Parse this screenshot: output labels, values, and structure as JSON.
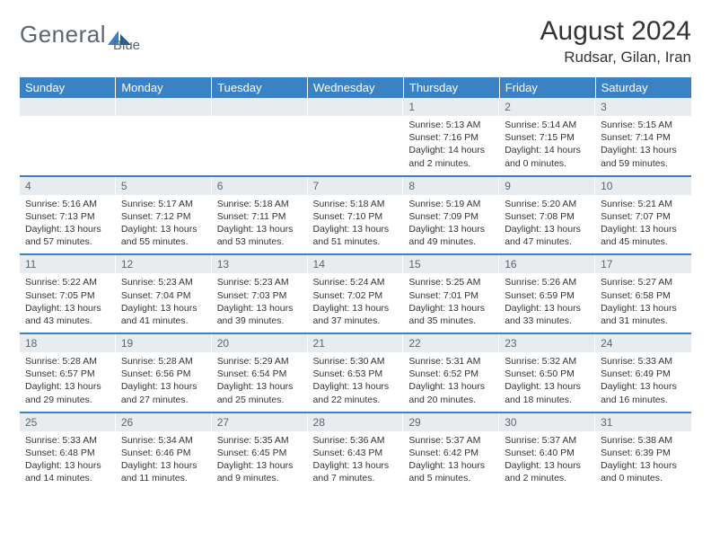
{
  "brand": {
    "name1": "General",
    "name2": "Blue"
  },
  "title": "August 2024",
  "location": "Rudsar, Gilan, Iran",
  "colors": {
    "accent": "#3b82c4",
    "header_text": "#ffffff",
    "daynum_bg": "#e9ecef",
    "text": "#333333",
    "logo_gray": "#5a6570"
  },
  "weekdays": [
    "Sunday",
    "Monday",
    "Tuesday",
    "Wednesday",
    "Thursday",
    "Friday",
    "Saturday"
  ],
  "weeks": [
    [
      {
        "n": "",
        "sr": "",
        "ss": "",
        "dl": ""
      },
      {
        "n": "",
        "sr": "",
        "ss": "",
        "dl": ""
      },
      {
        "n": "",
        "sr": "",
        "ss": "",
        "dl": ""
      },
      {
        "n": "",
        "sr": "",
        "ss": "",
        "dl": ""
      },
      {
        "n": "1",
        "sr": "Sunrise: 5:13 AM",
        "ss": "Sunset: 7:16 PM",
        "dl": "Daylight: 14 hours and 2 minutes."
      },
      {
        "n": "2",
        "sr": "Sunrise: 5:14 AM",
        "ss": "Sunset: 7:15 PM",
        "dl": "Daylight: 14 hours and 0 minutes."
      },
      {
        "n": "3",
        "sr": "Sunrise: 5:15 AM",
        "ss": "Sunset: 7:14 PM",
        "dl": "Daylight: 13 hours and 59 minutes."
      }
    ],
    [
      {
        "n": "4",
        "sr": "Sunrise: 5:16 AM",
        "ss": "Sunset: 7:13 PM",
        "dl": "Daylight: 13 hours and 57 minutes."
      },
      {
        "n": "5",
        "sr": "Sunrise: 5:17 AM",
        "ss": "Sunset: 7:12 PM",
        "dl": "Daylight: 13 hours and 55 minutes."
      },
      {
        "n": "6",
        "sr": "Sunrise: 5:18 AM",
        "ss": "Sunset: 7:11 PM",
        "dl": "Daylight: 13 hours and 53 minutes."
      },
      {
        "n": "7",
        "sr": "Sunrise: 5:18 AM",
        "ss": "Sunset: 7:10 PM",
        "dl": "Daylight: 13 hours and 51 minutes."
      },
      {
        "n": "8",
        "sr": "Sunrise: 5:19 AM",
        "ss": "Sunset: 7:09 PM",
        "dl": "Daylight: 13 hours and 49 minutes."
      },
      {
        "n": "9",
        "sr": "Sunrise: 5:20 AM",
        "ss": "Sunset: 7:08 PM",
        "dl": "Daylight: 13 hours and 47 minutes."
      },
      {
        "n": "10",
        "sr": "Sunrise: 5:21 AM",
        "ss": "Sunset: 7:07 PM",
        "dl": "Daylight: 13 hours and 45 minutes."
      }
    ],
    [
      {
        "n": "11",
        "sr": "Sunrise: 5:22 AM",
        "ss": "Sunset: 7:05 PM",
        "dl": "Daylight: 13 hours and 43 minutes."
      },
      {
        "n": "12",
        "sr": "Sunrise: 5:23 AM",
        "ss": "Sunset: 7:04 PM",
        "dl": "Daylight: 13 hours and 41 minutes."
      },
      {
        "n": "13",
        "sr": "Sunrise: 5:23 AM",
        "ss": "Sunset: 7:03 PM",
        "dl": "Daylight: 13 hours and 39 minutes."
      },
      {
        "n": "14",
        "sr": "Sunrise: 5:24 AM",
        "ss": "Sunset: 7:02 PM",
        "dl": "Daylight: 13 hours and 37 minutes."
      },
      {
        "n": "15",
        "sr": "Sunrise: 5:25 AM",
        "ss": "Sunset: 7:01 PM",
        "dl": "Daylight: 13 hours and 35 minutes."
      },
      {
        "n": "16",
        "sr": "Sunrise: 5:26 AM",
        "ss": "Sunset: 6:59 PM",
        "dl": "Daylight: 13 hours and 33 minutes."
      },
      {
        "n": "17",
        "sr": "Sunrise: 5:27 AM",
        "ss": "Sunset: 6:58 PM",
        "dl": "Daylight: 13 hours and 31 minutes."
      }
    ],
    [
      {
        "n": "18",
        "sr": "Sunrise: 5:28 AM",
        "ss": "Sunset: 6:57 PM",
        "dl": "Daylight: 13 hours and 29 minutes."
      },
      {
        "n": "19",
        "sr": "Sunrise: 5:28 AM",
        "ss": "Sunset: 6:56 PM",
        "dl": "Daylight: 13 hours and 27 minutes."
      },
      {
        "n": "20",
        "sr": "Sunrise: 5:29 AM",
        "ss": "Sunset: 6:54 PM",
        "dl": "Daylight: 13 hours and 25 minutes."
      },
      {
        "n": "21",
        "sr": "Sunrise: 5:30 AM",
        "ss": "Sunset: 6:53 PM",
        "dl": "Daylight: 13 hours and 22 minutes."
      },
      {
        "n": "22",
        "sr": "Sunrise: 5:31 AM",
        "ss": "Sunset: 6:52 PM",
        "dl": "Daylight: 13 hours and 20 minutes."
      },
      {
        "n": "23",
        "sr": "Sunrise: 5:32 AM",
        "ss": "Sunset: 6:50 PM",
        "dl": "Daylight: 13 hours and 18 minutes."
      },
      {
        "n": "24",
        "sr": "Sunrise: 5:33 AM",
        "ss": "Sunset: 6:49 PM",
        "dl": "Daylight: 13 hours and 16 minutes."
      }
    ],
    [
      {
        "n": "25",
        "sr": "Sunrise: 5:33 AM",
        "ss": "Sunset: 6:48 PM",
        "dl": "Daylight: 13 hours and 14 minutes."
      },
      {
        "n": "26",
        "sr": "Sunrise: 5:34 AM",
        "ss": "Sunset: 6:46 PM",
        "dl": "Daylight: 13 hours and 11 minutes."
      },
      {
        "n": "27",
        "sr": "Sunrise: 5:35 AM",
        "ss": "Sunset: 6:45 PM",
        "dl": "Daylight: 13 hours and 9 minutes."
      },
      {
        "n": "28",
        "sr": "Sunrise: 5:36 AM",
        "ss": "Sunset: 6:43 PM",
        "dl": "Daylight: 13 hours and 7 minutes."
      },
      {
        "n": "29",
        "sr": "Sunrise: 5:37 AM",
        "ss": "Sunset: 6:42 PM",
        "dl": "Daylight: 13 hours and 5 minutes."
      },
      {
        "n": "30",
        "sr": "Sunrise: 5:37 AM",
        "ss": "Sunset: 6:40 PM",
        "dl": "Daylight: 13 hours and 2 minutes."
      },
      {
        "n": "31",
        "sr": "Sunrise: 5:38 AM",
        "ss": "Sunset: 6:39 PM",
        "dl": "Daylight: 13 hours and 0 minutes."
      }
    ]
  ]
}
